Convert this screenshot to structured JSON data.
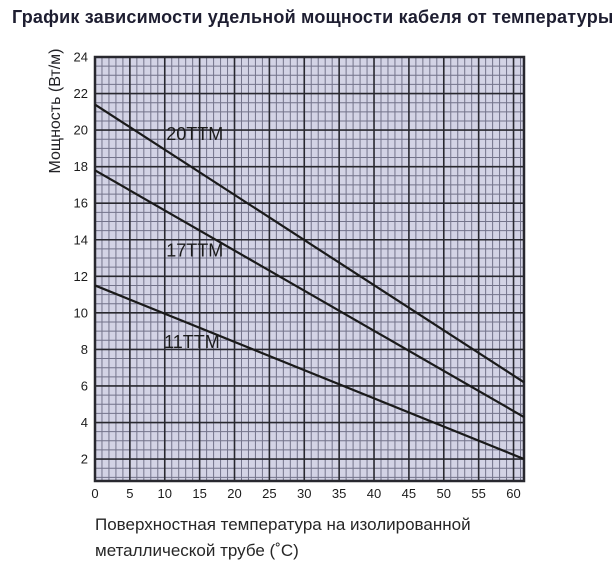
{
  "page": {
    "title": "График зависимости удельной мощности кабеля от температуры"
  },
  "colors": {
    "plot_bg": "#d3d3e5",
    "grid_minor": "#73738a",
    "grid_major": "#28282f",
    "plot_border": "#28282f",
    "series_line": "#1a1a1a",
    "tick_text": "#1c1c1c",
    "label_text": "#1b1b1b",
    "title_text": "#1e1e31"
  },
  "chart_data": {
    "type": "line",
    "title": "График зависимости удельной мощности кабеля от температуры",
    "xlabel": "Поверхностная температура на изолированной металлической трубе (˚C)",
    "caption_line1": "Поверхностная температура на изолированной",
    "caption_line2": "металлической трубе (˚C)",
    "ylabel": "Мощность (Вт/м)",
    "xlim": [
      0,
      61.5
    ],
    "ylim": [
      0.8,
      24
    ],
    "xticks": [
      0,
      5,
      10,
      15,
      20,
      25,
      30,
      35,
      40,
      45,
      50,
      55,
      60
    ],
    "yticks": [
      2,
      4,
      6,
      8,
      10,
      12,
      14,
      16,
      18,
      20,
      22,
      24
    ],
    "x_minor_step": 1,
    "y_minor_step": 0.5,
    "x_major_step": 5,
    "y_major_step": 2,
    "grid": "both",
    "legend_position": "inline-labels",
    "series": [
      {
        "name": "20ТТМ",
        "x": [
          0,
          61.5
        ],
        "y": [
          21.4,
          6.2
        ],
        "label_x": 14.3,
        "label_y": 19.8
      },
      {
        "name": "17ТТМ",
        "x": [
          0,
          61.5
        ],
        "y": [
          17.8,
          4.3
        ],
        "label_x": 14.3,
        "label_y": 13.4
      },
      {
        "name": "11ТТМ",
        "x": [
          0,
          61.5
        ],
        "y": [
          11.5,
          2.0
        ],
        "label_x": 13.9,
        "label_y": 8.4
      }
    ]
  }
}
